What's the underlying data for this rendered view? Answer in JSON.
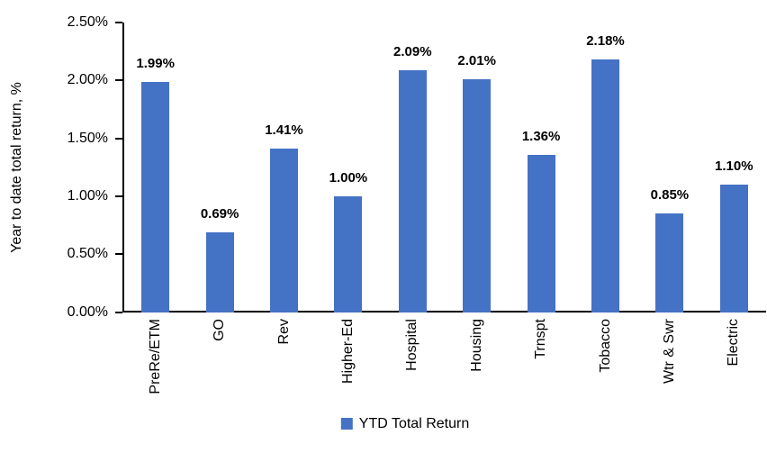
{
  "chart_data": {
    "type": "bar",
    "title": "",
    "xlabel": "",
    "ylabel": "Year to date total return, %",
    "categories": [
      "PreRe/ETM",
      "GO",
      "Rev",
      "Higher-Ed",
      "Hospital",
      "Housing",
      "Trnspt",
      "Tobacco",
      "Wtr & Swr",
      "Electric"
    ],
    "values": [
      1.99,
      0.69,
      1.41,
      1.0,
      2.09,
      2.01,
      1.36,
      2.18,
      0.85,
      1.1
    ],
    "value_labels": [
      "1.99%",
      "0.69%",
      "1.41%",
      "1.00%",
      "2.09%",
      "2.01%",
      "1.36%",
      "2.18%",
      "0.85%",
      "1.10%"
    ],
    "ytick_values": [
      0,
      0.5,
      1.0,
      1.5,
      2.0,
      2.5
    ],
    "ytick_labels": [
      "0.00%",
      "0.50%",
      "1.00%",
      "1.50%",
      "2.00%",
      "2.50%"
    ],
    "ylim": [
      0,
      2.5
    ],
    "grid": false,
    "legend_position": "bottom",
    "series_name": "YTD Total Return",
    "bar_color": "#4472C4",
    "axis_color": "#000000"
  }
}
